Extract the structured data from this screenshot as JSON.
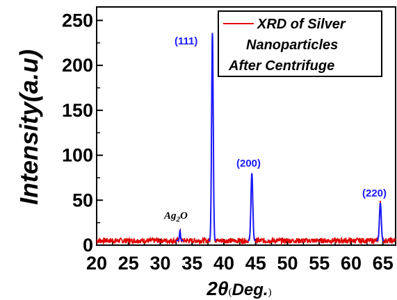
{
  "chart_data": {
    "type": "line",
    "xlabel": "2θ",
    "xlabel_unit": "Deg.",
    "ylabel": "Intensity(a.u)",
    "xlim": [
      20,
      67
    ],
    "ylim": [
      0,
      265
    ],
    "x_ticks": [
      "20",
      "25",
      "30",
      "35",
      "40",
      "45",
      "50",
      "55",
      "60",
      "65"
    ],
    "y_ticks": [
      "0",
      "50",
      "100",
      "150",
      "200",
      "250"
    ],
    "legend": {
      "position": "top-right",
      "lines": [
        "XRD of  Silver",
        "Nanoparticles",
        "After Centrifuge"
      ]
    },
    "series": [
      {
        "name": "XRD of  Silver Nanoparticles After Centrifuge",
        "color": "#e00000",
        "baseline": 5,
        "peaks": [
          {
            "x": 33.1,
            "y": 16,
            "label": "Ag2O"
          },
          {
            "x": 38.2,
            "y": 236,
            "label": "(111)"
          },
          {
            "x": 44.4,
            "y": 80,
            "label": "(200)"
          },
          {
            "x": 64.6,
            "y": 47,
            "label": "(220)"
          }
        ]
      }
    ],
    "fit_color": "#1a1aff",
    "peak_label_color": "#1a1aff",
    "annotations": {
      "ag2o_main": "Ag",
      "ag2o_sub": "2",
      "ag2o_end": "O",
      "p111": "(111)",
      "p200": "(200)",
      "p220": "(220)"
    }
  }
}
